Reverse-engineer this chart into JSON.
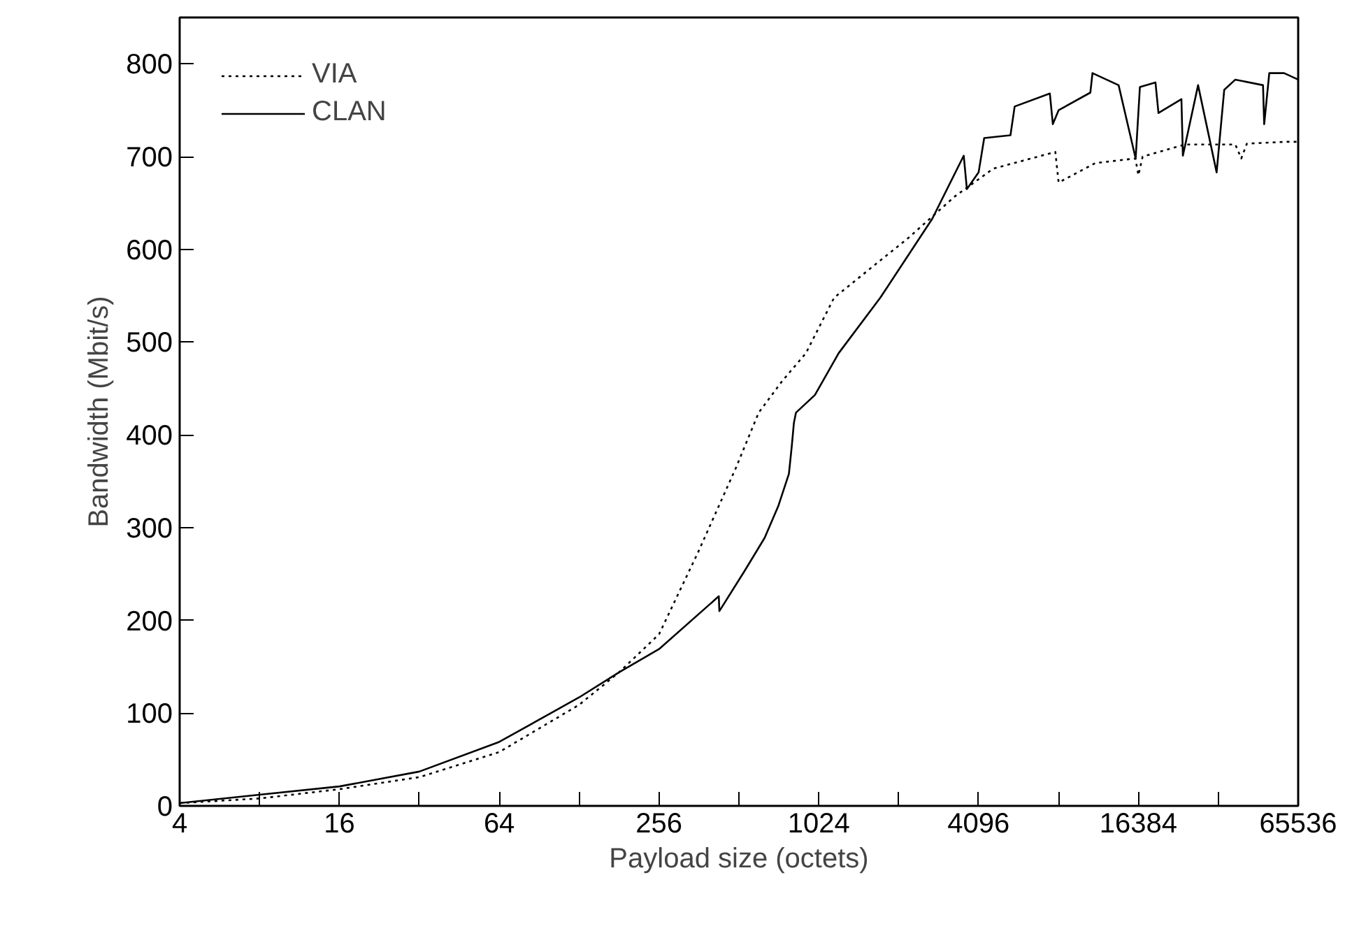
{
  "chart_data": {
    "type": "line",
    "xlabel": "Payload size (octets)",
    "ylabel": "Bandwidth (Mbit/s)",
    "log": "x",
    "grid": false,
    "legend": "top left",
    "marker": "none",
    "xlim": [
      4,
      65536
    ],
    "ylim": [
      0,
      850
    ],
    "xticks": [
      4,
      {
        "value": 8,
        "label": null
      },
      16,
      {
        "value": 32,
        "label": null
      },
      64,
      {
        "value": 128,
        "label": null
      },
      256,
      {
        "value": 512,
        "label": null
      },
      1024,
      {
        "value": 2048,
        "label": null
      },
      4096,
      {
        "value": 8192,
        "label": null
      },
      16384,
      {
        "value": 32768,
        "label": null
      },
      65536
    ],
    "yticks": [
      0,
      100,
      200,
      300,
      400,
      500,
      600,
      700,
      800
    ],
    "series": [
      {
        "name": "VIA",
        "color": "#000000",
        "line_style": "dotted",
        "x": [
          4,
          8,
          16,
          32,
          64,
          128,
          181,
          256,
          360,
          498,
          608,
          745,
          915,
          1170,
          2220,
          3330,
          4650,
          7970,
          8200,
          11270,
          15960,
          16384,
          17000,
          24500,
          38000,
          40000,
          42000,
          59500,
          65536
        ],
        "values": [
          3,
          8,
          18,
          31,
          58,
          109,
          144,
          185,
          274,
          364,
          424,
          458,
          488,
          548,
          612,
          657,
          687,
          705,
          672,
          693,
          698,
          680,
          700,
          713,
          713,
          698,
          714,
          716,
          716
        ]
      },
      {
        "name": "CLAN",
        "color": "#000000",
        "line_style": "solid",
        "x": [
          4,
          8,
          16,
          32,
          64,
          128,
          181,
          256,
          430,
          432,
          537,
          640,
          720,
          790,
          810,
          825,
          840,
          990,
          1216,
          1747,
          2740,
          3600,
          3700,
          4096,
          4300,
          5400,
          5600,
          7600,
          7800,
          8200,
          10800,
          11000,
          13800,
          16000,
          16600,
          19000,
          19500,
          23800,
          24100,
          27500,
          32300,
          34500,
          38000,
          48300,
          48800,
          51000,
          58000,
          65536
        ],
        "values": [
          3,
          12,
          21,
          37,
          69,
          117,
          144,
          169,
          226,
          210,
          253,
          289,
          323,
          358,
          388,
          413,
          424,
          443,
          488,
          548,
          633,
          701,
          665,
          683,
          720,
          723,
          754,
          768,
          735,
          750,
          769,
          790,
          777,
          698,
          775,
          780,
          747,
          762,
          701,
          777,
          683,
          772,
          783,
          777,
          735,
          790,
          790,
          783
        ]
      }
    ]
  }
}
